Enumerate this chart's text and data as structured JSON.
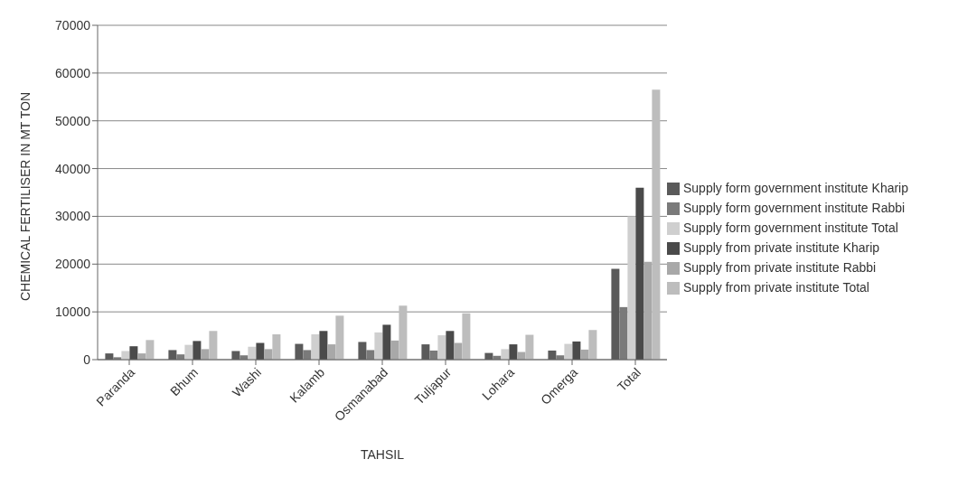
{
  "chart_data": {
    "type": "bar",
    "xlabel": "TAHSIL",
    "ylabel": "CHEMICAL FERTILISER IN MT TON",
    "categories": [
      "Paranda",
      "Bhum",
      "Washi",
      "Kalamb",
      "Osmanabad",
      "Tuljapur",
      "Lohara",
      "Omerga",
      "Total"
    ],
    "series": [
      {
        "name": "Supply form government institute Kharip",
        "color": "#5a5a5a",
        "values": [
          1300,
          2000,
          1800,
          3300,
          3700,
          3200,
          1400,
          1900,
          19000
        ]
      },
      {
        "name": "Supply form government institute Rabbi",
        "color": "#7a7a7a",
        "values": [
          500,
          1100,
          900,
          2000,
          2000,
          1900,
          800,
          900,
          11000
        ]
      },
      {
        "name": "Supply form government institute Total",
        "color": "#cfcfcf",
        "values": [
          1800,
          3100,
          2700,
          5300,
          5700,
          5100,
          2200,
          3300,
          30000
        ]
      },
      {
        "name": "Supply from private institute Kharip",
        "color": "#4a4a4a",
        "values": [
          2800,
          3900,
          3500,
          6000,
          7300,
          6000,
          3200,
          3800,
          36000
        ]
      },
      {
        "name": "Supply from private institute Rabbi",
        "color": "#a8a8a8",
        "values": [
          1300,
          2200,
          2200,
          3200,
          4000,
          3500,
          1600,
          2100,
          20500
        ]
      },
      {
        "name": "Supply from private institute Total",
        "color": "#bdbdbd",
        "values": [
          4100,
          6000,
          5300,
          9200,
          11300,
          9700,
          5200,
          6200,
          56500
        ]
      }
    ],
    "ylim": [
      0,
      70000
    ],
    "yticks": [
      0,
      10000,
      20000,
      30000,
      40000,
      50000,
      60000,
      70000
    ],
    "grid": "y",
    "legend": "right"
  }
}
